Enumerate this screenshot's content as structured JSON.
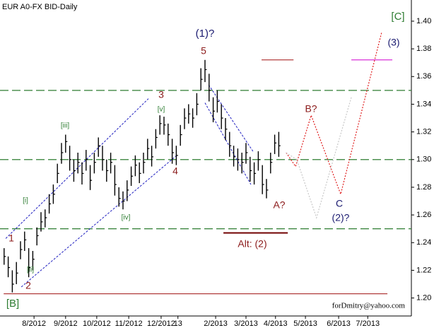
{
  "chart_data": {
    "type": "ohlc",
    "title": "EUR A0-FX BID-Daily",
    "footer": "forDmitry@yahoo.com",
    "x": [
      1,
      2,
      3,
      4,
      5,
      6,
      7,
      8,
      9,
      10,
      11,
      12,
      13,
      14,
      15,
      16,
      17,
      18,
      19,
      20,
      21,
      22,
      23,
      24,
      25,
      26,
      27,
      28,
      29,
      30,
      31,
      32,
      33,
      34,
      35,
      36,
      37,
      38,
      39,
      40,
      41,
      42,
      43,
      44,
      45,
      46,
      47,
      48,
      49,
      50,
      51,
      52,
      53,
      54,
      55,
      56,
      57,
      58,
      59,
      60,
      61,
      62,
      63,
      64,
      65,
      66,
      67,
      68
    ],
    "close": [
      1.23,
      1.222,
      1.21,
      1.218,
      1.235,
      1.242,
      1.222,
      1.228,
      1.245,
      1.255,
      1.258,
      1.268,
      1.275,
      1.29,
      1.305,
      1.313,
      1.3,
      1.292,
      1.298,
      1.29,
      1.3,
      1.285,
      1.298,
      1.31,
      1.3,
      1.292,
      1.298,
      1.282,
      1.272,
      1.27,
      1.278,
      1.288,
      1.296,
      1.29,
      1.298,
      1.308,
      1.302,
      1.316,
      1.326,
      1.325,
      1.318,
      1.305,
      1.303,
      1.318,
      1.33,
      1.333,
      1.33,
      1.34,
      1.358,
      1.365,
      1.35,
      1.335,
      1.342,
      1.33,
      1.322,
      1.31,
      1.302,
      1.3,
      1.298,
      1.305,
      1.292,
      1.29,
      1.3,
      1.282,
      1.278,
      1.298,
      1.312,
      1.31
    ],
    "high": [
      1.236,
      1.23,
      1.22,
      1.226,
      1.241,
      1.248,
      1.236,
      1.234,
      1.251,
      1.262,
      1.264,
      1.275,
      1.282,
      1.297,
      1.312,
      1.318,
      1.31,
      1.3,
      1.305,
      1.298,
      1.307,
      1.296,
      1.305,
      1.316,
      1.31,
      1.3,
      1.305,
      1.296,
      1.28,
      1.277,
      1.285,
      1.295,
      1.303,
      1.298,
      1.305,
      1.315,
      1.31,
      1.322,
      1.332,
      1.331,
      1.326,
      1.315,
      1.31,
      1.325,
      1.337,
      1.34,
      1.337,
      1.348,
      1.366,
      1.372,
      1.362,
      1.345,
      1.35,
      1.34,
      1.33,
      1.32,
      1.31,
      1.308,
      1.305,
      1.312,
      1.302,
      1.298,
      1.306,
      1.296,
      1.286,
      1.305,
      1.318,
      1.32
    ],
    "low": [
      1.224,
      1.215,
      1.204,
      1.21,
      1.228,
      1.234,
      1.215,
      1.22,
      1.238,
      1.248,
      1.251,
      1.261,
      1.268,
      1.283,
      1.297,
      1.305,
      1.292,
      1.284,
      1.29,
      1.282,
      1.292,
      1.278,
      1.29,
      1.302,
      1.292,
      1.284,
      1.29,
      1.274,
      1.266,
      1.264,
      1.27,
      1.281,
      1.288,
      1.283,
      1.29,
      1.3,
      1.295,
      1.308,
      1.318,
      1.318,
      1.31,
      1.297,
      1.296,
      1.31,
      1.322,
      1.326,
      1.323,
      1.332,
      1.35,
      1.356,
      1.342,
      1.327,
      1.334,
      1.322,
      1.314,
      1.302,
      1.295,
      1.292,
      1.29,
      1.297,
      1.284,
      1.282,
      1.292,
      1.275,
      1.272,
      1.29,
      1.304,
      1.302
    ],
    "bar_color": "#000000",
    "xlim": [
      0,
      100
    ],
    "xticks": [
      {
        "value": 8.3,
        "label": "8/2012"
      },
      {
        "value": 16,
        "label": "9/2012"
      },
      {
        "value": 23.6,
        "label": "10/2012"
      },
      {
        "value": 31.4,
        "label": "11/2012"
      },
      {
        "value": 39.3,
        "label": "12/2012"
      },
      {
        "value": 43.4,
        "label": "13"
      },
      {
        "value": 52.6,
        "label": "2/2013"
      },
      {
        "value": 60,
        "label": "3/2013"
      },
      {
        "value": 67.2,
        "label": "4/2013"
      },
      {
        "value": 74.5,
        "label": "5/2013"
      },
      {
        "value": 82.6,
        "label": "6/2013"
      },
      {
        "value": 89.7,
        "label": "7/2013"
      }
    ],
    "ylim": [
      1.187,
      1.4153
    ],
    "yticks": [
      {
        "value": 1.2,
        "label": "1.20"
      },
      {
        "value": 1.22,
        "label": "1.22"
      },
      {
        "value": 1.24,
        "label": "1.24"
      },
      {
        "value": 1.26,
        "label": "1.26"
      },
      {
        "value": 1.28,
        "label": "1.28"
      },
      {
        "value": 1.3,
        "label": "1.30"
      },
      {
        "value": 1.32,
        "label": "1.32"
      },
      {
        "value": 1.34,
        "label": "1.34"
      },
      {
        "value": 1.36,
        "label": "1.36"
      },
      {
        "value": 1.38,
        "label": "1.38"
      },
      {
        "value": 1.4,
        "label": "1.40"
      }
    ],
    "levels": [
      {
        "value": 1.35,
        "color": "#2e7d32",
        "dash": true
      },
      {
        "value": 1.3,
        "color": "#2e7d32",
        "dash": true
      },
      {
        "value": 1.25,
        "color": "#2e7d32",
        "dash": true
      }
    ],
    "segments": [
      {
        "x": [
          63.8,
          71.6
        ],
        "y": [
          1.372,
          1.372
        ],
        "color": "#a01010",
        "width": 1
      },
      {
        "x": [
          0.9,
          94.5
        ],
        "y": [
          1.203,
          1.203
        ],
        "color": "#a01010",
        "width": 1
      },
      {
        "x": [
          85.7,
          95.7
        ],
        "y": [
          1.372,
          1.372
        ],
        "color": "#d000d0",
        "width": 1
      },
      {
        "x": [
          54.5,
          70.2
        ],
        "y": [
          1.247,
          1.247
        ],
        "color": "#700000",
        "width": 2
      }
    ],
    "trendlines": [
      {
        "x": [
          1.4,
          36.2
        ],
        "y": [
          1.243,
          1.344
        ],
        "color": "#2020c0"
      },
      {
        "x": [
          5.2,
          43.1
        ],
        "y": [
          1.208,
          1.303
        ],
        "color": "#2020c0"
      },
      {
        "x": [
          50.9,
          61.7
        ],
        "y": [
          1.354,
          1.306
        ],
        "color": "#2020c0"
      },
      {
        "x": [
          50.0,
          61.2
        ],
        "y": [
          1.341,
          1.282
        ],
        "color": "#2020c0"
      }
    ],
    "forecasts": [
      {
        "x": [
          69.8,
          72.1,
          75.9,
          83.1,
          93.1
        ],
        "y": [
          1.305,
          1.295,
          1.332,
          1.275,
          1.392
        ],
        "color": "#e02020"
      },
      {
        "x": [
          69.8,
          72.4,
          77.2,
          85.7
        ],
        "y": [
          1.305,
          1.3,
          1.258,
          1.345
        ],
        "color": "#c8c8c8"
      }
    ],
    "annotations": [
      {
        "text": "(1)?",
        "color": "#1a1a70"
      },
      {
        "text": "5",
        "color": "#8b1a1a"
      },
      {
        "text": "3",
        "color": "#8b1a1a"
      },
      {
        "text": "[v]",
        "color": "#2e7d32"
      },
      {
        "text": "[iii]",
        "color": "#2e7d32"
      },
      {
        "text": "[i]",
        "color": "#2e7d32"
      },
      {
        "text": "1",
        "color": "#8b1a1a"
      },
      {
        "text": "[ii]",
        "color": "#2e7d32"
      },
      {
        "text": "2",
        "color": "#8b1a1a"
      },
      {
        "text": "[iv]",
        "color": "#2e7d32"
      },
      {
        "text": "4",
        "color": "#8b1a1a"
      },
      {
        "text": "B?",
        "color": "#8b1a1a"
      },
      {
        "text": "A?",
        "color": "#8b1a1a"
      },
      {
        "text": "C",
        "color": "#1a1a70"
      },
      {
        "text": "(2)?",
        "color": "#1a1a70"
      },
      {
        "text": "(3)",
        "color": "#1a1a70"
      },
      {
        "text": "[C]",
        "color": "#2e7d32"
      },
      {
        "text": "[B]",
        "color": "#2e7d32"
      },
      {
        "text": "Alt:  (2)",
        "color": "#8b1a1a"
      }
    ]
  }
}
